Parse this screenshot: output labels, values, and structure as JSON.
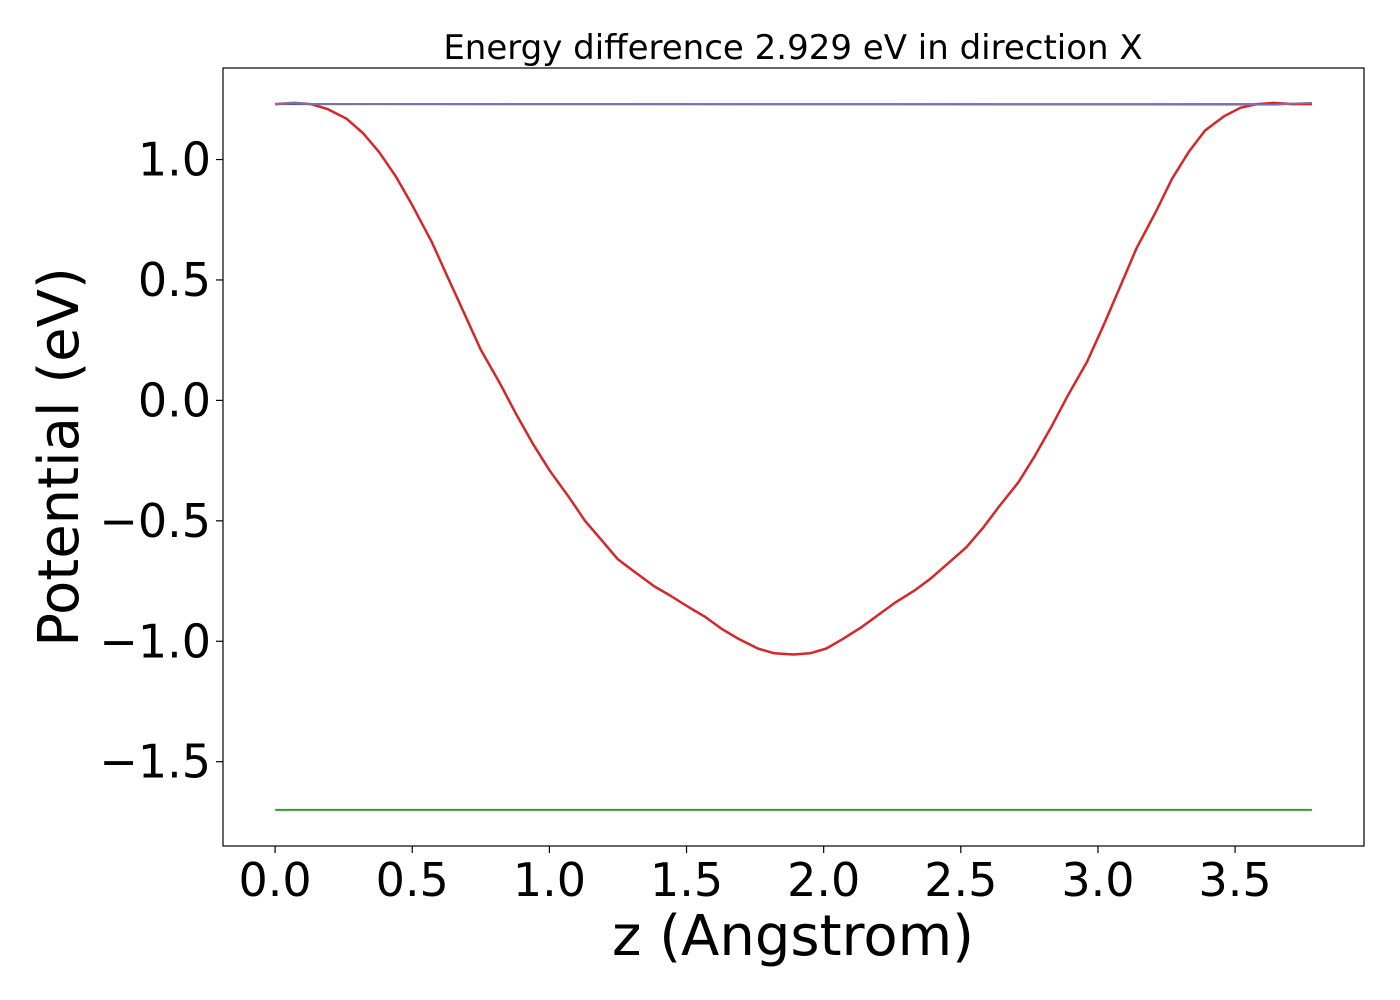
{
  "chart_data": {
    "type": "line",
    "title": "Energy difference 2.929 eV in direction X",
    "xlabel": "z (Angstrom)",
    "ylabel": "Potential (eV)",
    "xlim": [
      -0.19,
      3.97
    ],
    "ylim": [
      -1.85,
      1.38
    ],
    "xticks": [
      0.0,
      0.5,
      1.0,
      1.5,
      2.0,
      2.5,
      3.0,
      3.5
    ],
    "xtick_labels": [
      "0.0",
      "0.5",
      "1.0",
      "1.5",
      "2.0",
      "2.5",
      "3.0",
      "3.5"
    ],
    "yticks": [
      -1.5,
      -1.0,
      -0.5,
      0.0,
      0.5,
      1.0
    ],
    "ytick_labels": [
      "−1.5",
      "−1.0",
      "−0.5",
      "0.0",
      "0.5",
      "1.0"
    ],
    "grid": false,
    "series": [
      {
        "color": "#1f77b4",
        "x": [
          0.0,
          3.78
        ],
        "y": [
          1.23,
          1.23
        ]
      },
      {
        "color": "#2ca02c",
        "x": [
          0.0,
          3.78
        ],
        "y": [
          -1.7,
          -1.7
        ]
      },
      {
        "color": "#d62728",
        "x": [
          0.0,
          0.07,
          0.13,
          0.19,
          0.26,
          0.32,
          0.38,
          0.44,
          0.5,
          0.57,
          0.63,
          0.69,
          0.75,
          0.82,
          0.88,
          0.94,
          1.0,
          1.07,
          1.13,
          1.19,
          1.25,
          1.32,
          1.38,
          1.44,
          1.51,
          1.57,
          1.63,
          1.69,
          1.76,
          1.82,
          1.89,
          1.95,
          2.01,
          2.07,
          2.14,
          2.2,
          2.26,
          2.33,
          2.39,
          2.45,
          2.52,
          2.58,
          2.64,
          2.71,
          2.77,
          2.83,
          2.89,
          2.96,
          3.02,
          3.08,
          3.14,
          3.21,
          3.27,
          3.33,
          3.39,
          3.46,
          3.52,
          3.58,
          3.64,
          3.71,
          3.78
        ],
        "y": [
          1.23,
          1.235,
          1.23,
          1.21,
          1.17,
          1.11,
          1.03,
          0.93,
          0.81,
          0.66,
          0.51,
          0.36,
          0.21,
          0.07,
          -0.06,
          -0.18,
          -0.29,
          -0.4,
          -0.5,
          -0.58,
          -0.66,
          -0.72,
          -0.77,
          -0.81,
          -0.86,
          -0.9,
          -0.95,
          -0.99,
          -1.03,
          -1.05,
          -1.055,
          -1.05,
          -1.03,
          -0.99,
          -0.94,
          -0.89,
          -0.84,
          -0.79,
          -0.74,
          -0.68,
          -0.61,
          -0.53,
          -0.44,
          -0.34,
          -0.23,
          -0.11,
          0.02,
          0.16,
          0.31,
          0.47,
          0.63,
          0.78,
          0.92,
          1.03,
          1.12,
          1.18,
          1.215,
          1.23,
          1.235,
          1.23,
          1.23
        ]
      },
      {
        "color": "#7f6fb0",
        "x": [
          0.0,
          0.07,
          0.13,
          3.65,
          3.71,
          3.78
        ],
        "y": [
          1.23,
          1.235,
          1.23,
          1.228,
          1.232,
          1.235
        ]
      }
    ]
  }
}
